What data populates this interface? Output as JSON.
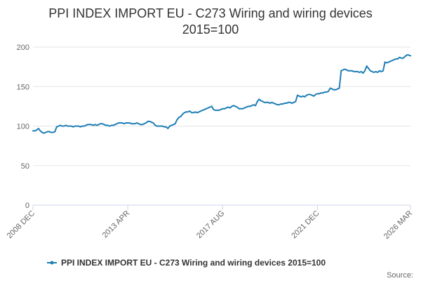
{
  "chart_data": {
    "type": "line",
    "title_line1": "PPI INDEX IMPORT EU - C273 Wiring and wiring devices",
    "title_line2": "2015=100",
    "xlabel": "",
    "ylabel": "",
    "ylim": [
      0,
      200
    ],
    "y_ticks": [
      "0",
      "50",
      "100",
      "150",
      "200"
    ],
    "x_ticks": [
      "2008 DEC",
      "2013 APR",
      "2017 AUG",
      "2021 DEC",
      "2026 MAR"
    ],
    "grid": "horizontal",
    "legend": "bottom",
    "line_color": "#1f7fb6",
    "series": [
      {
        "name": "PPI INDEX IMPORT EU - C273 Wiring and wiring devices 2015=100",
        "x": [
          "2008-12",
          "2009-01",
          "2009-02",
          "2009-03",
          "2009-04",
          "2009-05",
          "2009-06",
          "2009-07",
          "2009-08",
          "2009-09",
          "2009-10",
          "2009-11",
          "2009-12",
          "2010-01",
          "2010-02",
          "2010-03",
          "2010-04",
          "2010-05",
          "2010-06",
          "2010-07",
          "2010-08",
          "2010-09",
          "2010-10",
          "2010-11",
          "2010-12",
          "2011-01",
          "2011-02",
          "2011-03",
          "2011-04",
          "2011-05",
          "2011-06",
          "2011-07",
          "2011-08",
          "2011-09",
          "2011-10",
          "2011-11",
          "2011-12",
          "2012-01",
          "2012-02",
          "2012-03",
          "2012-04",
          "2012-05",
          "2012-06",
          "2012-07",
          "2012-08",
          "2012-09",
          "2012-10",
          "2012-11",
          "2012-12",
          "2013-01",
          "2013-02",
          "2013-03",
          "2013-04",
          "2013-05",
          "2013-06",
          "2013-07",
          "2013-08",
          "2013-09",
          "2013-10",
          "2013-11",
          "2013-12",
          "2014-01",
          "2014-02",
          "2014-03",
          "2014-04",
          "2014-05",
          "2014-06",
          "2014-07",
          "2014-08",
          "2014-09",
          "2014-10",
          "2014-11",
          "2014-12",
          "2015-01",
          "2015-02",
          "2015-03",
          "2015-04",
          "2015-05",
          "2015-06",
          "2015-07",
          "2015-08",
          "2015-09",
          "2015-10",
          "2015-11",
          "2015-12",
          "2016-01",
          "2016-02",
          "2016-03",
          "2016-04",
          "2016-05",
          "2016-06",
          "2016-07",
          "2016-08",
          "2016-09",
          "2016-10",
          "2016-11",
          "2016-12",
          "2017-01",
          "2017-02",
          "2017-03",
          "2017-04",
          "2017-05",
          "2017-06",
          "2017-07",
          "2017-08",
          "2017-09",
          "2017-10",
          "2017-11",
          "2017-12",
          "2018-01",
          "2018-02",
          "2018-03",
          "2018-04",
          "2018-05",
          "2018-06",
          "2018-07",
          "2018-08",
          "2018-09",
          "2018-10",
          "2018-11",
          "2018-12",
          "2019-01",
          "2019-02",
          "2019-03",
          "2019-04",
          "2019-05",
          "2019-06",
          "2019-07",
          "2019-08",
          "2019-09",
          "2019-10",
          "2019-11",
          "2019-12",
          "2020-01",
          "2020-02",
          "2020-03",
          "2020-04",
          "2020-05",
          "2020-06",
          "2020-07",
          "2020-08",
          "2020-09",
          "2020-10",
          "2020-11",
          "2020-12",
          "2021-01",
          "2021-02",
          "2021-03",
          "2021-04",
          "2021-05",
          "2021-06",
          "2021-07",
          "2021-08",
          "2021-09",
          "2021-10",
          "2021-11",
          "2021-12",
          "2022-01",
          "2022-02",
          "2022-03",
          "2022-04",
          "2022-05",
          "2022-06",
          "2022-07",
          "2022-08",
          "2022-09",
          "2022-10",
          "2022-11",
          "2022-12",
          "2023-01",
          "2023-02",
          "2023-03",
          "2023-04",
          "2023-05",
          "2023-06",
          "2023-07",
          "2023-08",
          "2023-09",
          "2023-10",
          "2023-11",
          "2023-12",
          "2024-01",
          "2024-02",
          "2024-03",
          "2024-04",
          "2024-05",
          "2024-06",
          "2024-07",
          "2024-08",
          "2024-09",
          "2024-10",
          "2024-11",
          "2024-12",
          "2025-01",
          "2025-02",
          "2025-03",
          "2025-04",
          "2025-05",
          "2025-06",
          "2025-07",
          "2025-08",
          "2025-09",
          "2025-10",
          "2025-11",
          "2025-12",
          "2026-01",
          "2026-02",
          "2026-03"
        ],
        "values": [
          94,
          94,
          95,
          97,
          94,
          92,
          91,
          92,
          93,
          93,
          92,
          92,
          93,
          99,
          100,
          101,
          100,
          100,
          101,
          100,
          100,
          100,
          99,
          100,
          100,
          100,
          99,
          100,
          100,
          101,
          102,
          102,
          102,
          101,
          102,
          101,
          102,
          103,
          103,
          102,
          101,
          101,
          100,
          101,
          101,
          102,
          103,
          104,
          104,
          104,
          103,
          104,
          104,
          104,
          103,
          103,
          103,
          104,
          103,
          102,
          102,
          103,
          104,
          106,
          106,
          105,
          104,
          101,
          100,
          100,
          100,
          100,
          99,
          99,
          97,
          100,
          101,
          102,
          103,
          108,
          111,
          112,
          115,
          117,
          118,
          118,
          119,
          117,
          117,
          118,
          117,
          118,
          119,
          120,
          121,
          122,
          123,
          124,
          125,
          121,
          120,
          120,
          120,
          121,
          122,
          122,
          123,
          124,
          123,
          125,
          126,
          125,
          124,
          122,
          122,
          122,
          123,
          124,
          125,
          125,
          126,
          127,
          126,
          131,
          134,
          132,
          131,
          130,
          130,
          130,
          129,
          130,
          129,
          128,
          127,
          127,
          128,
          128,
          129,
          129,
          130,
          130,
          129,
          130,
          131,
          139,
          138,
          137,
          138,
          137,
          139,
          140,
          140,
          139,
          138,
          140,
          141,
          141,
          142,
          142,
          143,
          143,
          144,
          148,
          147,
          146,
          146,
          147,
          148,
          170,
          171,
          172,
          171,
          170,
          170,
          170,
          169,
          169,
          169,
          168,
          169,
          167,
          170,
          176,
          173,
          170,
          169,
          168,
          169,
          168,
          170,
          169,
          170,
          181,
          180,
          181,
          182,
          183,
          184,
          185,
          185,
          187,
          186,
          186,
          188,
          190,
          190,
          189
        ]
      }
    ]
  },
  "source_label": "Source:"
}
